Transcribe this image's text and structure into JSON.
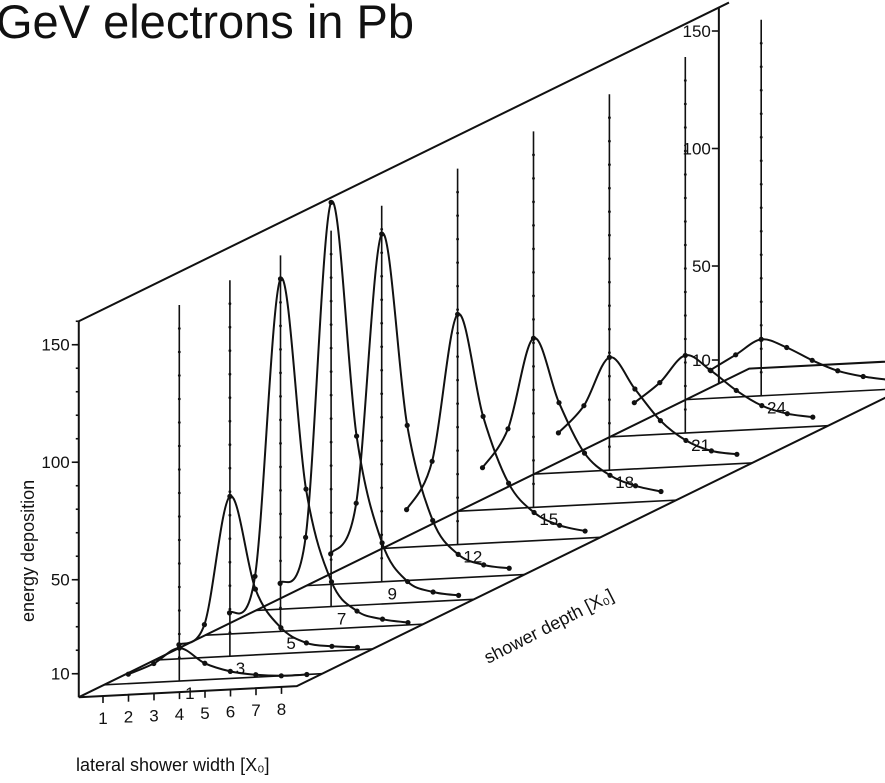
{
  "title": "GeV electrons in Pb",
  "chart_data": {
    "type": "line",
    "subtype": "3d-waterfall",
    "title": "GeV electrons in Pb",
    "xlabel": "lateral shower width [X₀]",
    "ylabel": "energy deposition",
    "zlabel": "shower depth [X₀]",
    "x_ticks": [
      "1",
      "2",
      "3",
      "4",
      "5",
      "6",
      "7",
      "8"
    ],
    "y_ticks_front": [
      "10",
      "50",
      "100",
      "150"
    ],
    "y_ticks_back": [
      "10",
      "50",
      "100",
      "150"
    ],
    "ylim": [
      0,
      160
    ],
    "depth_ticks": [
      "1",
      "3",
      "5",
      "7",
      "9",
      "12",
      "15",
      "18",
      "21",
      "24"
    ],
    "series": [
      {
        "depth": "1",
        "x": [
          1,
          2,
          3,
          4,
          5,
          6,
          7,
          8
        ],
        "values": [
          4,
          8,
          14,
          7,
          3,
          1,
          0,
          0
        ]
      },
      {
        "depth": "3",
        "x": [
          1,
          2,
          3,
          4,
          5,
          6,
          7,
          8
        ],
        "values": [
          6,
          14,
          68,
          28,
          11,
          4,
          2,
          1
        ]
      },
      {
        "depth": "5",
        "x": [
          1,
          2,
          3,
          4,
          5,
          6,
          7,
          8
        ],
        "values": [
          9,
          24,
          150,
          60,
          20,
          7,
          3,
          1
        ]
      },
      {
        "depth": "7",
        "x": [
          1,
          2,
          3,
          4,
          5,
          6,
          7,
          8
        ],
        "values": [
          11,
          30,
          172,
          72,
          26,
          9,
          4,
          2
        ]
      },
      {
        "depth": "9",
        "x": [
          1,
          2,
          3,
          4,
          5,
          6,
          7,
          8
        ],
        "values": [
          13,
          34,
          148,
          66,
          25,
          10,
          5,
          3
        ]
      },
      {
        "depth": "12",
        "x": [
          1,
          2,
          3,
          4,
          5,
          6,
          7,
          8
        ],
        "values": [
          16,
          36,
          98,
          54,
          25,
          12,
          6,
          3
        ]
      },
      {
        "depth": "15",
        "x": [
          1,
          2,
          3,
          4,
          5,
          6,
          7,
          8
        ],
        "values": [
          18,
          34,
          72,
          44,
          22,
          12,
          7,
          4
        ]
      },
      {
        "depth": "18",
        "x": [
          1,
          2,
          3,
          4,
          5,
          6,
          7,
          8
        ],
        "values": [
          17,
          28,
          48,
          34,
          20,
          11,
          6,
          4
        ]
      },
      {
        "depth": "21",
        "x": [
          1,
          2,
          3,
          4,
          5,
          6,
          7,
          8
        ],
        "values": [
          14,
          22,
          33,
          26,
          17,
          10,
          6,
          4
        ]
      },
      {
        "depth": "24",
        "x": [
          1,
          2,
          3,
          4,
          5,
          6,
          7,
          8
        ],
        "values": [
          12,
          18,
          24,
          20,
          14,
          9,
          6,
          4
        ]
      }
    ],
    "grid": false,
    "legend": "none"
  }
}
